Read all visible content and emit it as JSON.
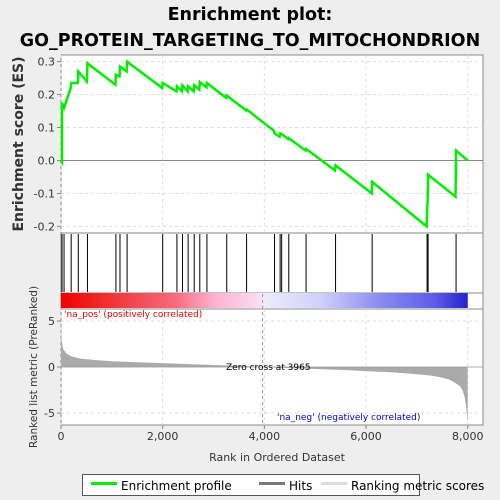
{
  "title_line1": "Enrichment plot:",
  "title_line2": "GO_PROTEIN_TARGETING_TO_MITOCHONDRION",
  "colors": {
    "enrichment_line": "#00ee00",
    "hit_line": "#000000",
    "metric_fill": "#aaaaaa",
    "pos_label": "#dd0000",
    "neg_label": "#0000cc"
  },
  "chart_data": [
    {
      "type": "line",
      "name": "enrichment-profile",
      "ylabel": "Enrichment score (ES)",
      "xlim": [
        0,
        8300
      ],
      "ylim": [
        -0.22,
        0.32
      ],
      "yticks": [
        -0.2,
        -0.1,
        0.0,
        0.1,
        0.2,
        0.3
      ],
      "ytick_labels": [
        "-0.2",
        "-0.1",
        "0.0",
        "0.1",
        "0.2",
        "0.3"
      ],
      "grid": true,
      "hits": [
        20,
        60,
        200,
        340,
        520,
        1080,
        1160,
        1300,
        2000,
        2280,
        2390,
        2500,
        2620,
        2730,
        2870,
        3260,
        3650,
        4200,
        4310,
        4340,
        4480,
        4820,
        5400,
        6120,
        7200,
        7220,
        7770
      ],
      "x": [
        0,
        20,
        20,
        60,
        190,
        200,
        330,
        340,
        510,
        520,
        1070,
        1080,
        1150,
        1160,
        1290,
        1300,
        1990,
        2000,
        2270,
        2280,
        2380,
        2390,
        2490,
        2500,
        2610,
        2620,
        2720,
        2730,
        2860,
        2870,
        3250,
        3260,
        3640,
        3650,
        4190,
        4200,
        4300,
        4310,
        4340,
        4470,
        4480,
        4810,
        4820,
        5390,
        5400,
        6110,
        6120,
        7190,
        7200,
        7210,
        7220,
        7760,
        7770,
        8000
      ],
      "y": [
        0.0,
        -0.005,
        0.175,
        0.16,
        0.22,
        0.235,
        0.235,
        0.27,
        0.24,
        0.295,
        0.23,
        0.26,
        0.255,
        0.285,
        0.27,
        0.3,
        0.22,
        0.235,
        0.21,
        0.225,
        0.21,
        0.228,
        0.21,
        0.225,
        0.21,
        0.228,
        0.215,
        0.238,
        0.222,
        0.235,
        0.19,
        0.197,
        0.152,
        0.155,
        0.09,
        0.082,
        0.072,
        0.082,
        0.08,
        0.065,
        0.068,
        0.03,
        0.035,
        -0.03,
        -0.015,
        -0.1,
        -0.065,
        -0.2,
        -0.15,
        -0.125,
        -0.043,
        -0.11,
        0.03,
        0.0
      ]
    },
    {
      "type": "area",
      "name": "ranked-list-metric",
      "xlabel": "Rank in Ordered Dataset",
      "ylabel": "Ranked list metric (PreRanked)",
      "xlim": [
        0,
        8300
      ],
      "ylim": [
        -6.3,
        6.3
      ],
      "yticks": [
        -5,
        0,
        5
      ],
      "ytick_labels": [
        "-5",
        "0",
        "5"
      ],
      "xticks": [
        0,
        2000,
        4000,
        6000,
        8000
      ],
      "xtick_labels": [
        "0",
        "2,000",
        "4,000",
        "6,000",
        "8,000"
      ],
      "grid": true,
      "x": [
        0,
        10,
        40,
        100,
        200,
        400,
        700,
        1000,
        1500,
        2000,
        2500,
        3000,
        3500,
        3965,
        4500,
        5000,
        5500,
        6000,
        6500,
        7000,
        7300,
        7500,
        7650,
        7750,
        7850,
        7900,
        7940,
        7970,
        8000
      ],
      "y": [
        4.8,
        3.0,
        2.0,
        1.5,
        1.15,
        0.9,
        0.75,
        0.62,
        0.52,
        0.42,
        0.32,
        0.22,
        0.12,
        0.0,
        -0.12,
        -0.22,
        -0.32,
        -0.45,
        -0.58,
        -0.78,
        -0.95,
        -1.15,
        -1.4,
        -1.7,
        -2.1,
        -2.6,
        -3.3,
        -4.4,
        -6.0
      ],
      "zero_cross": 3965,
      "zero_cross_label": "Zero cross at 3965",
      "pos_label": "'na_pos' (positively correlated)",
      "neg_label": "'na_neg' (negatively correlated)"
    }
  ],
  "legend": {
    "items": [
      {
        "label": "Enrichment profile"
      },
      {
        "label": "Hits"
      },
      {
        "label": "Ranking metric scores"
      }
    ]
  }
}
